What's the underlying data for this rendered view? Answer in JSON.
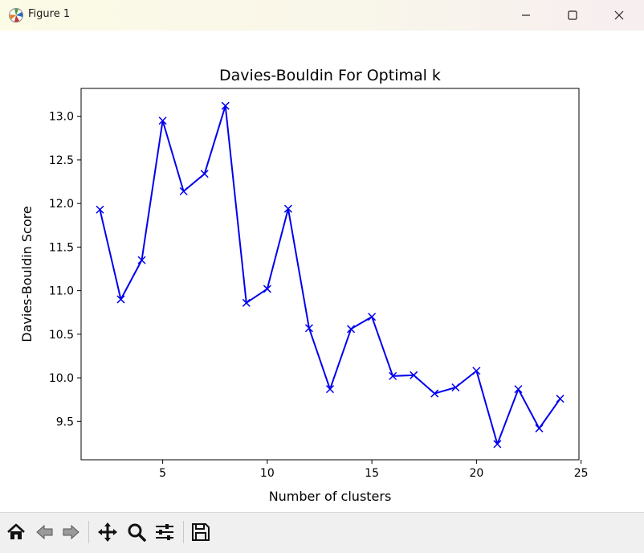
{
  "window": {
    "title": "Figure 1",
    "icon": "matplotlib-logo-icon",
    "controls": [
      "minimize-icon",
      "maximize-icon",
      "close-icon"
    ]
  },
  "toolbar": {
    "tools": [
      "home-icon",
      "back-arrow-icon",
      "forward-arrow-icon",
      "pan-icon",
      "zoom-icon",
      "configure-subplots-icon",
      "save-icon"
    ]
  },
  "chart_data": {
    "type": "line",
    "title": "Davies-Bouldin For Optimal k",
    "xlabel": "Number of clusters",
    "ylabel": "Davies-Bouldin Score",
    "xlim": [
      1.1,
      24.9
    ],
    "ylim": [
      9.06,
      13.32
    ],
    "xticks": [
      5,
      10,
      15,
      20,
      25
    ],
    "xtick_labels": [
      "5",
      "10",
      "15",
      "20",
      "25"
    ],
    "yticks": [
      9.5,
      10.0,
      10.5,
      11.0,
      11.5,
      12.0,
      12.5,
      13.0
    ],
    "ytick_labels": [
      "9.5",
      "10.0",
      "10.5",
      "11.0",
      "11.5",
      "12.0",
      "12.5",
      "13.0"
    ],
    "grid": false,
    "series": [
      {
        "color": "#0000ee",
        "marker": "x",
        "x": [
          2,
          3,
          4,
          5,
          6,
          7,
          8,
          9,
          10,
          11,
          12,
          13,
          14,
          15,
          16,
          17,
          18,
          19,
          20,
          21,
          22,
          23,
          24
        ],
        "y": [
          11.93,
          10.9,
          11.35,
          12.95,
          12.14,
          12.34,
          13.12,
          10.86,
          11.02,
          11.94,
          10.57,
          9.87,
          10.56,
          10.7,
          10.02,
          10.03,
          9.82,
          9.89,
          10.08,
          9.24,
          9.87,
          9.42,
          9.76
        ]
      }
    ]
  }
}
